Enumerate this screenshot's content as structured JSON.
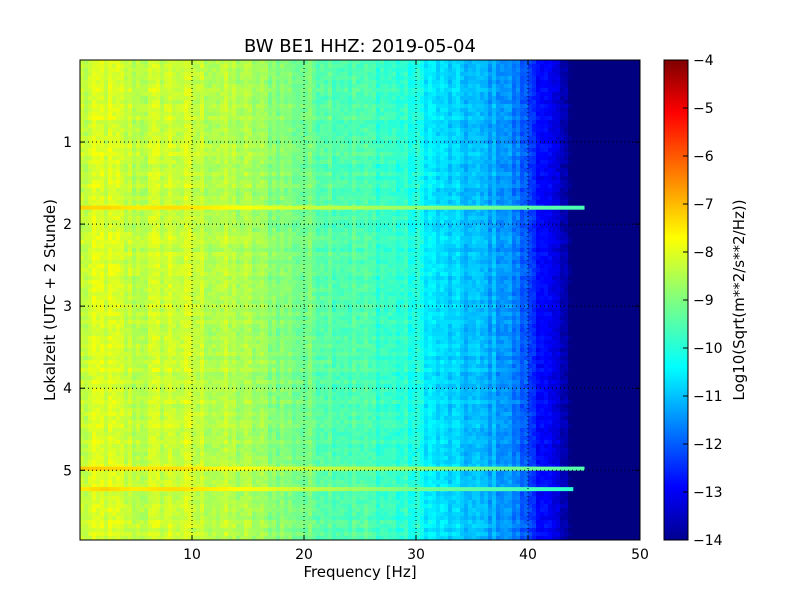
{
  "chart_data": {
    "type": "heatmap",
    "title": "BW BE1 HHZ: 2019-05-04",
    "xlabel": "Frequency [Hz]",
    "ylabel": "Lokalzeit (UTC + 2 Stunde)",
    "xlim": [
      0,
      50
    ],
    "ylim": [
      5.85,
      0
    ],
    "x_ticks": [
      10,
      20,
      30,
      40,
      50
    ],
    "y_ticks": [
      1,
      2,
      3,
      4,
      5
    ],
    "grid": true,
    "colorbar": {
      "label": "Log10(Sqrt(m**2/s**2/Hz))",
      "range": [
        -14,
        -4
      ],
      "ticks": [
        -4,
        -5,
        -6,
        -7,
        -8,
        -9,
        -10,
        -11,
        -12,
        -13,
        -14
      ],
      "colormap": "jet"
    },
    "spectral_profile": {
      "frequency_hz": [
        0,
        2,
        5,
        8,
        10,
        15,
        20,
        25,
        28,
        30,
        32,
        35,
        38,
        40,
        42,
        44,
        46,
        50
      ],
      "log10_psd": [
        -8.4,
        -8.1,
        -8.4,
        -8.2,
        -8.3,
        -8.6,
        -9.1,
        -9.5,
        -9.7,
        -10.0,
        -10.6,
        -10.9,
        -11.2,
        -12.0,
        -13.0,
        -14.0,
        -14.0,
        -14.0
      ]
    },
    "horizontal_lines": [
      {
        "time_h": 1.8,
        "level": -7.3,
        "extent_hz": 45
      },
      {
        "time_h": 4.98,
        "level": -7.2,
        "extent_hz": 45
      },
      {
        "time_h": 5.23,
        "level": -7.6,
        "extent_hz": 44
      }
    ]
  }
}
